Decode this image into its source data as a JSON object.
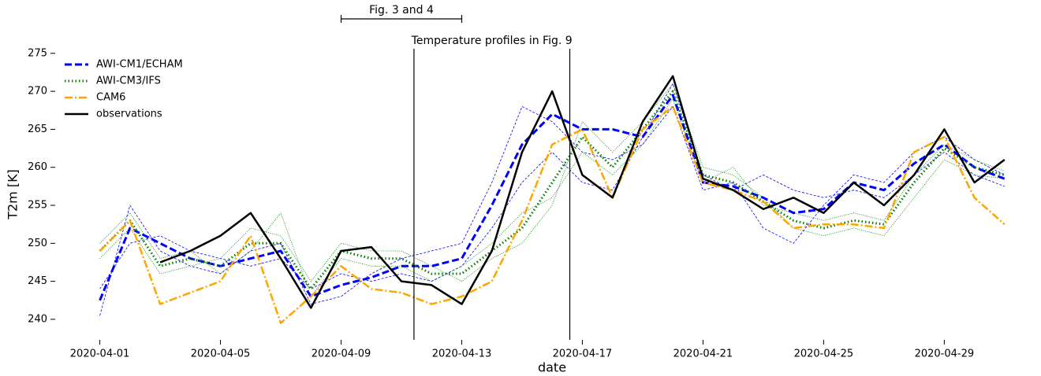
{
  "chart_data": {
    "type": "line",
    "x_label": "date",
    "y_label": "T2m [K]",
    "x": [
      "2020-04-01",
      "2020-04-02",
      "2020-04-03",
      "2020-04-04",
      "2020-04-05",
      "2020-04-06",
      "2020-04-07",
      "2020-04-08",
      "2020-04-09",
      "2020-04-10",
      "2020-04-11",
      "2020-04-12",
      "2020-04-13",
      "2020-04-14",
      "2020-04-15",
      "2020-04-16",
      "2020-04-17",
      "2020-04-18",
      "2020-04-19",
      "2020-04-20",
      "2020-04-21",
      "2020-04-22",
      "2020-04-23",
      "2020-04-24",
      "2020-04-25",
      "2020-04-26",
      "2020-04-27",
      "2020-04-28",
      "2020-04-29",
      "2020-04-30",
      "2020-05-01"
    ],
    "series": [
      {
        "name": "AWI-CM1/ECHAM",
        "color": "#0000ff",
        "style": "dashed",
        "values": [
          242.5,
          252,
          250,
          248,
          247,
          248,
          249,
          243,
          244.5,
          245.5,
          247,
          247,
          248,
          255,
          263,
          267,
          265,
          265,
          264,
          269.5,
          258,
          257.5,
          256,
          254,
          254.5,
          258,
          257,
          260.5,
          263,
          260,
          258.5
        ]
      },
      {
        "name": "AWI-CM3/IFS",
        "color": "#008000",
        "style": "dotted",
        "values": [
          249,
          253,
          247,
          248,
          247,
          250,
          250,
          244,
          249,
          248,
          248,
          246,
          246,
          249,
          252,
          258,
          264,
          260,
          265,
          270,
          259,
          258,
          255.5,
          253,
          252,
          253,
          252.5,
          258,
          262.5,
          260,
          259
        ]
      },
      {
        "name": "CAM6",
        "color": "#ffa500",
        "style": "dashdot",
        "values": [
          249,
          253,
          242,
          243.5,
          245,
          251,
          239.5,
          243,
          247,
          244,
          243.5,
          242,
          243,
          245,
          253,
          263,
          265,
          256,
          265,
          268,
          258,
          257,
          255.5,
          252,
          252.5,
          252.5,
          252,
          262,
          264,
          256,
          252.5
        ]
      },
      {
        "name": "observations",
        "color": "#000000",
        "style": "solid",
        "values": [
          null,
          null,
          247.5,
          249,
          251,
          254,
          248,
          241.5,
          249,
          249.5,
          245,
          244.5,
          242,
          249,
          262,
          270,
          259,
          256,
          266,
          272,
          258.5,
          257,
          254.5,
          256,
          254,
          258,
          255,
          259,
          265,
          258,
          261
        ]
      },
      {
        "color": "#0000ff",
        "style": "thin-dashed",
        "values": [
          240.5,
          255,
          249,
          247,
          246,
          249,
          250,
          242,
          243,
          246,
          248,
          249,
          250,
          258,
          268,
          266,
          262,
          261,
          263,
          268,
          257,
          258,
          252,
          250,
          255,
          259,
          258,
          262,
          264,
          261,
          259
        ]
      },
      {
        "color": "#0000ff",
        "style": "thin-dashed",
        "values": [
          244,
          250,
          251,
          249,
          248,
          247,
          248,
          244,
          246,
          245,
          246,
          245,
          247,
          252,
          258,
          262,
          258,
          257,
          264,
          271,
          259,
          257,
          259,
          257,
          256,
          257,
          256,
          259,
          262,
          259,
          257.5
        ]
      },
      {
        "color": "#008000",
        "style": "thin-dotted",
        "values": [
          248,
          252,
          246,
          247,
          248,
          252,
          251,
          245,
          250,
          249,
          249,
          247,
          245,
          248,
          250,
          255,
          266,
          262,
          266,
          271,
          260,
          259,
          256,
          252,
          251,
          252,
          251,
          256,
          261,
          259,
          258.5
        ]
      },
      {
        "color": "#008000",
        "style": "thin-dotted",
        "values": [
          250,
          254,
          248,
          249,
          246,
          249,
          254,
          243,
          248,
          247,
          247,
          245,
          247,
          250,
          254,
          256,
          262,
          259,
          263,
          269,
          258,
          260,
          255,
          254,
          253,
          254,
          253,
          259,
          263,
          261,
          259.5
        ]
      }
    ],
    "xlim": [
      "2020-03-30T12:30",
      "2020-05-01T07:00"
    ],
    "xticks": [
      "2020-04-01",
      "2020-04-05",
      "2020-04-09",
      "2020-04-13",
      "2020-04-17",
      "2020-04-21",
      "2020-04-25",
      "2020-04-29"
    ],
    "ylim": [
      237.3,
      275.6
    ],
    "yticks": [
      240,
      245,
      250,
      255,
      260,
      265,
      270,
      275
    ],
    "legend": "upper left",
    "annotations": [
      {
        "text": "Temperature profiles in Fig. 9",
        "vlines": [
          "2020-04-11T10:00",
          "2020-04-16T14:00"
        ]
      },
      {
        "text": "Fig. 3 and 4",
        "span": [
          "2020-04-09",
          "2020-04-13"
        ]
      }
    ]
  }
}
